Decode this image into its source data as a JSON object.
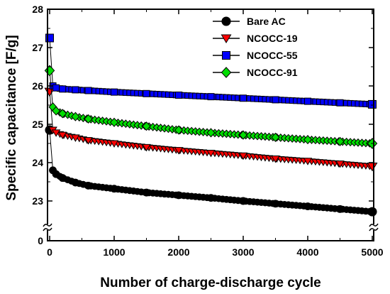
{
  "chart_data": {
    "type": "line",
    "title": "",
    "xlabel": "Number of charge-discharge cycle",
    "ylabel": "Specific capacitance [F/g]",
    "xlim": [
      0,
      5000
    ],
    "ylim": [
      22,
      28
    ],
    "y_axis_break": true,
    "y_break_label": "0",
    "x_ticks": [
      0,
      1000,
      2000,
      3000,
      4000,
      5000
    ],
    "x_tick_labels": [
      "0",
      "1000",
      "2000",
      "3000",
      "4000",
      "5000"
    ],
    "y_ticks": [
      23,
      24,
      25,
      26,
      27,
      28
    ],
    "y_tick_labels": [
      "23",
      "24",
      "25",
      "26",
      "27",
      "28"
    ],
    "grid": false,
    "legend_position": "top-right",
    "series": [
      {
        "name": "Bare AC",
        "color": "#000000",
        "marker": "circle",
        "x": [
          0,
          50,
          100,
          200,
          400,
          600,
          1000,
          1500,
          2000,
          2500,
          3000,
          3500,
          4000,
          4500,
          5000
        ],
        "y": [
          24.85,
          23.8,
          23.7,
          23.6,
          23.48,
          23.4,
          23.32,
          23.22,
          23.15,
          23.08,
          23.0,
          22.93,
          22.86,
          22.79,
          22.72
        ]
      },
      {
        "name": "NCOCC-19",
        "color": "#ff0000",
        "marker": "triangle-down",
        "x": [
          0,
          50,
          100,
          200,
          400,
          600,
          1000,
          1500,
          2000,
          2500,
          3000,
          3500,
          4000,
          4500,
          5000
        ],
        "y": [
          25.85,
          24.85,
          24.78,
          24.72,
          24.65,
          24.58,
          24.5,
          24.4,
          24.32,
          24.25,
          24.18,
          24.1,
          24.04,
          23.97,
          23.9
        ]
      },
      {
        "name": "NCOCC-55",
        "color": "#0000ff",
        "marker": "square",
        "x": [
          0,
          50,
          100,
          200,
          400,
          600,
          1000,
          1500,
          2000,
          2500,
          3000,
          3500,
          4000,
          4500,
          5000
        ],
        "y": [
          27.25,
          26.0,
          25.95,
          25.92,
          25.9,
          25.88,
          25.84,
          25.8,
          25.76,
          25.72,
          25.68,
          25.64,
          25.6,
          25.56,
          25.52
        ]
      },
      {
        "name": "NCOCC-91",
        "color": "#00dd00",
        "marker": "diamond",
        "x": [
          0,
          50,
          100,
          200,
          400,
          600,
          1000,
          1500,
          2000,
          2500,
          3000,
          3500,
          4000,
          4500,
          5000
        ],
        "y": [
          26.4,
          25.45,
          25.35,
          25.28,
          25.2,
          25.14,
          25.05,
          24.95,
          24.85,
          24.78,
          24.72,
          24.66,
          24.6,
          24.55,
          24.5
        ]
      }
    ]
  }
}
